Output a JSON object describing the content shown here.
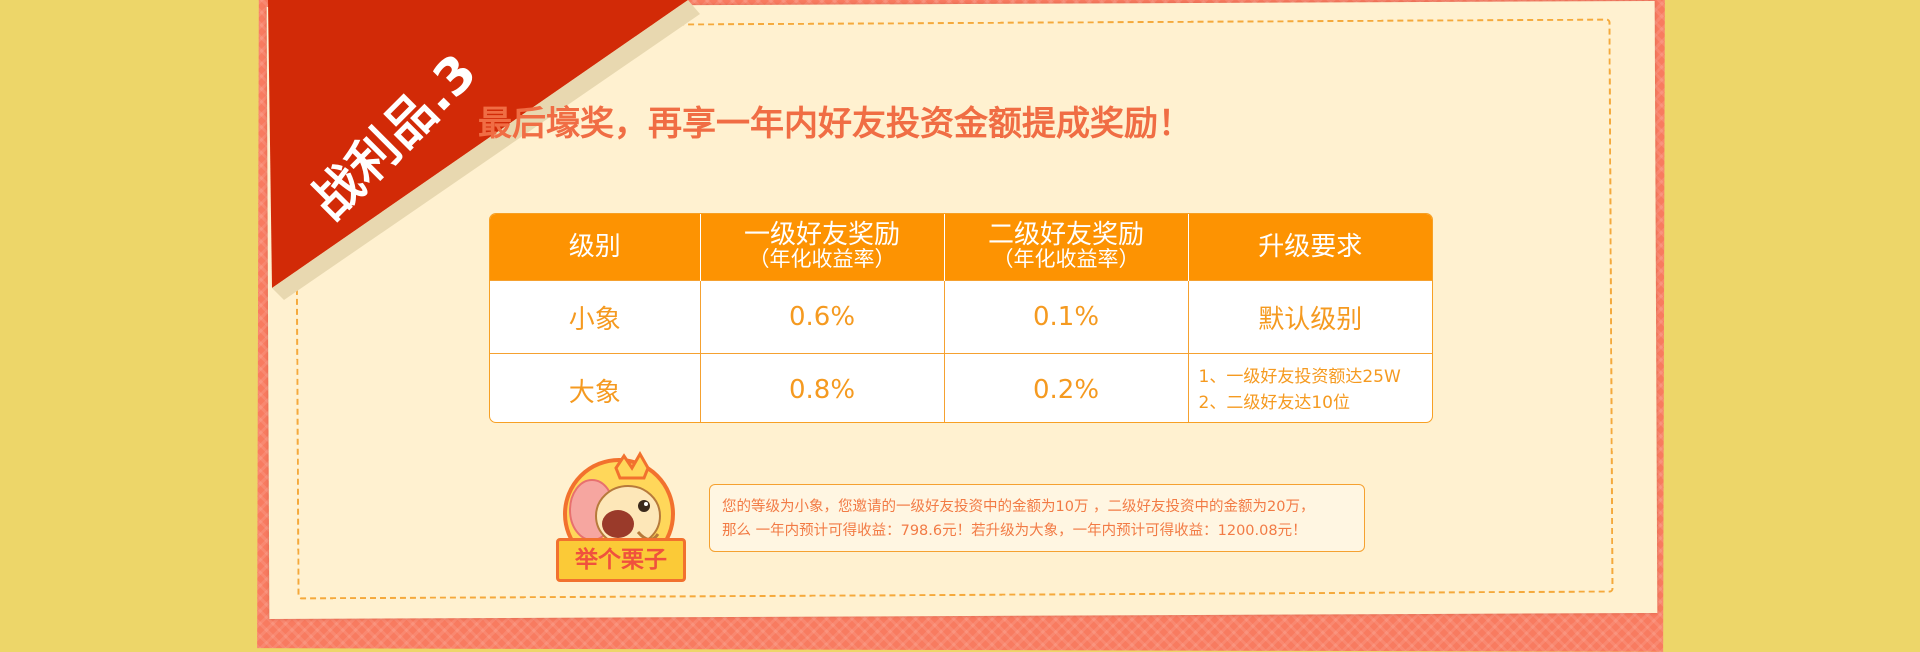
{
  "badge": {
    "label": "战利品.3"
  },
  "headline": "最后壕奖，再享一年内好友投资金额提成奖励！",
  "table": {
    "headers": [
      {
        "line1": "级别",
        "line2": ""
      },
      {
        "line1": "一级好友奖励",
        "line2": "（年化收益率）"
      },
      {
        "line1": "二级好友奖励",
        "line2": "（年化收益率）"
      },
      {
        "line1": "升级要求",
        "line2": ""
      }
    ],
    "rows": [
      {
        "level": "小象",
        "first": "0.6%",
        "second": "0.1%",
        "req": [
          "默认级别"
        ]
      },
      {
        "level": "大象",
        "first": "0.8%",
        "second": "0.2%",
        "req": [
          "1、一级好友投资额达25W",
          "2、二级好友达10位"
        ]
      }
    ]
  },
  "example": {
    "label": "举个栗子",
    "line1": "您的等级为小象，您邀请的一级好友投资中的金额为10万  ，二级好友投资中的金额为20万，",
    "line2": "那么 一年内预计可得收益：798.6元！若升级为大象，一年内预计可得收益：1200.08元！"
  },
  "colors": {
    "background": "#edd669",
    "frame": "#f87b60",
    "paper": "#fff1d0",
    "ribbon": "#d22a07",
    "header_orange": "#fd9302",
    "value_orange": "#f59a20",
    "headline": "#f06d44"
  }
}
